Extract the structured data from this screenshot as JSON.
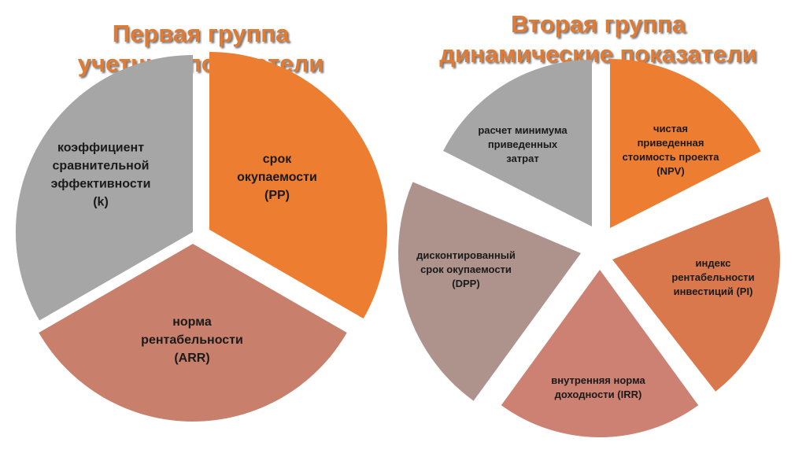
{
  "left_group": {
    "title_line1": "Первая группа",
    "title_line2": "учетные показатели",
    "slices": [
      {
        "lines": [
          "коэффициент",
          "сравнительной",
          "эффективности",
          "(k)"
        ],
        "color": "#a6a6a6"
      },
      {
        "lines": [
          "срок",
          "окупаемости",
          "(PP)"
        ],
        "color": "#ed7d31"
      },
      {
        "lines": [
          "норма",
          "рентабельности",
          "(ARR)"
        ],
        "color": "#c8806c"
      }
    ]
  },
  "right_group": {
    "title_line1": "Вторая группа",
    "title_line2": "динамические показатели",
    "slices": [
      {
        "lines": [
          "расчет минимума",
          "приведенных",
          "затрат"
        ],
        "color": "#a6a6a6"
      },
      {
        "lines": [
          "чистая",
          "приведенная",
          "стоимость проекта",
          "(NPV)"
        ],
        "color": "#ed7d31"
      },
      {
        "lines": [
          "индекс",
          "рентабельности",
          "инвестиций (PI)"
        ],
        "color": "#d8784c"
      },
      {
        "lines": [
          "внутренняя  норма",
          "доходности (IRR)"
        ],
        "color": "#cc8172"
      },
      {
        "lines": [
          "дисконтированный",
          "срок окупаемости",
          "(DPP)"
        ],
        "color": "#ae928c"
      }
    ]
  }
}
